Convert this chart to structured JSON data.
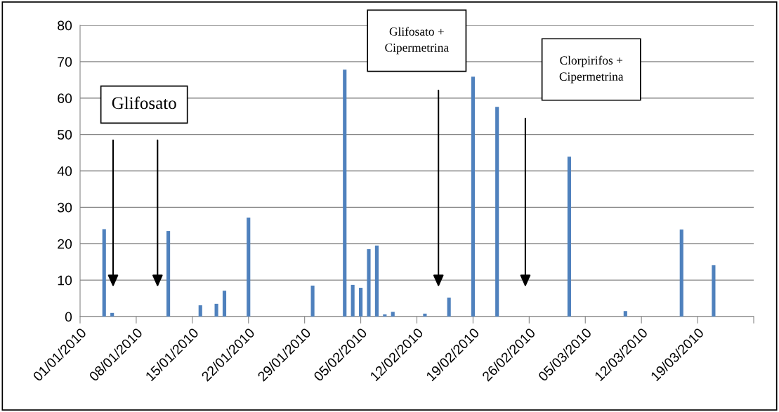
{
  "chart_data": {
    "type": "bar",
    "x": [
      "2010-01-04",
      "2010-01-05",
      "2010-01-12",
      "2010-01-16",
      "2010-01-18",
      "2010-01-19",
      "2010-01-22",
      "2010-01-30",
      "2010-02-03",
      "2010-02-04",
      "2010-02-05",
      "2010-02-06",
      "2010-02-07",
      "2010-02-08",
      "2010-02-09",
      "2010-02-13",
      "2010-02-16",
      "2010-02-19",
      "2010-02-22",
      "2010-03-03",
      "2010-03-10",
      "2010-03-17",
      "2010-03-21"
    ],
    "series": [
      {
        "color": "#4f81bd",
        "values": [
          24,
          1,
          23.5,
          3.1,
          3.5,
          7.1,
          27.2,
          8.5,
          67.8,
          8.7,
          7.9,
          18.5,
          19.5,
          0.6,
          1.3,
          0.8,
          5.2,
          65.9,
          57.6,
          43.9,
          1.5,
          23.9,
          14.1
        ]
      }
    ],
    "xlim": [
      "2010-01-01",
      "2010-03-26"
    ],
    "xticks": [
      {
        "value": "2010-01-01",
        "label": "01/01/2010"
      },
      {
        "value": "2010-01-08",
        "label": "08/01/2010"
      },
      {
        "value": "2010-01-15",
        "label": "15/01/2010"
      },
      {
        "value": "2010-01-22",
        "label": "22/01/2010"
      },
      {
        "value": "2010-01-29",
        "label": "29/01/2010"
      },
      {
        "value": "2010-02-05",
        "label": "05/02/2010"
      },
      {
        "value": "2010-02-12",
        "label": "12/02/2010"
      },
      {
        "value": "2010-02-19",
        "label": "19/02/2010"
      },
      {
        "value": "2010-02-26",
        "label": "26/02/2010"
      },
      {
        "value": "2010-03-05",
        "label": "05/03/2010"
      },
      {
        "value": "2010-03-12",
        "label": "12/03/2010"
      },
      {
        "value": "2010-03-19",
        "label": "19/03/2010"
      },
      {
        "value": "2010-03-26",
        "label": null
      }
    ],
    "ylim": [
      0,
      80
    ],
    "yticks": [
      0,
      10,
      20,
      30,
      40,
      50,
      60,
      70,
      80
    ],
    "grid": "y",
    "annotations": [
      "Glifosato",
      "Glifosato +\nCipermetrina",
      "Clorpirifos +\nCipermetrina"
    ]
  }
}
